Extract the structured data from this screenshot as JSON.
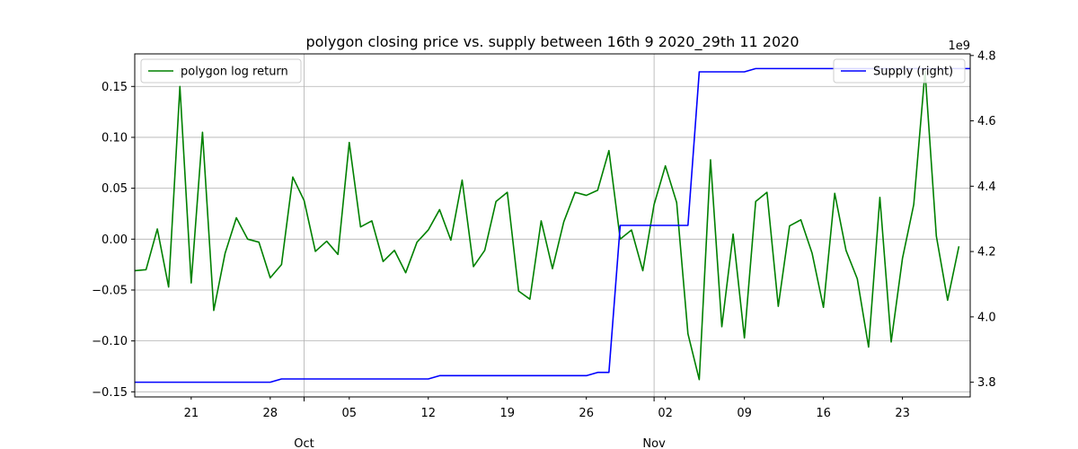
{
  "chart_data": {
    "type": "line",
    "title": "polygon closing price vs. supply between 16th 9 2020_29th 11 2020",
    "x_start": "2020-09-16",
    "x_end": "2020-11-29",
    "x_minor_ticks": [
      "21",
      "28",
      "05",
      "12",
      "19",
      "26",
      "02",
      "09",
      "16",
      "23"
    ],
    "x_minor_tick_dates": [
      "2020-09-21",
      "2020-09-28",
      "2020-10-05",
      "2020-10-12",
      "2020-10-19",
      "2020-10-26",
      "2020-11-02",
      "2020-11-09",
      "2020-11-16",
      "2020-11-23"
    ],
    "x_major_ticks": [
      "Oct",
      "Nov"
    ],
    "x_major_tick_dates": [
      "2020-10-01",
      "2020-11-01"
    ],
    "grid": true,
    "left_axis": {
      "ylim": [
        -0.155,
        0.182
      ],
      "ticks": [
        -0.15,
        -0.1,
        -0.05,
        0.0,
        0.05,
        0.1,
        0.15
      ],
      "tick_labels": [
        "−0.15",
        "−0.10",
        "−0.05",
        "0.00",
        "0.05",
        "0.10",
        "0.15"
      ]
    },
    "right_axis": {
      "ylim": [
        3.755,
        4.805
      ],
      "scale_label": "1e9",
      "ticks": [
        3.8,
        4.0,
        4.2,
        4.4,
        4.6,
        4.8
      ],
      "tick_labels": [
        "3.8",
        "4.0",
        "4.2",
        "4.4",
        "4.6",
        "4.8"
      ]
    },
    "series": [
      {
        "name": "polygon log return",
        "axis": "left",
        "color": "#008000",
        "legend_position": "upper left",
        "start_date": "2020-09-16",
        "values": [
          -0.031,
          -0.03,
          0.01,
          -0.047,
          0.15,
          -0.043,
          0.105,
          -0.07,
          -0.014,
          0.021,
          0.0,
          -0.003,
          -0.038,
          -0.025,
          0.061,
          0.038,
          -0.012,
          -0.002,
          -0.015,
          0.095,
          0.012,
          0.018,
          -0.022,
          -0.011,
          -0.033,
          -0.003,
          0.009,
          0.029,
          -0.001,
          0.058,
          -0.027,
          -0.011,
          0.037,
          0.046,
          -0.051,
          -0.059,
          0.018,
          -0.029,
          0.017,
          0.046,
          0.043,
          0.048,
          0.087,
          0.0,
          0.009,
          -0.031,
          0.034,
          0.072,
          0.036,
          -0.093,
          -0.138,
          0.078,
          -0.086,
          0.005,
          -0.097,
          0.037,
          0.046,
          -0.066,
          0.013,
          0.019,
          -0.014,
          -0.067,
          0.045,
          -0.011,
          -0.039,
          -0.106,
          0.041,
          -0.101,
          -0.019,
          0.034,
          0.165,
          0.003,
          -0.06,
          -0.007
        ]
      },
      {
        "name": "Supply (right)",
        "axis": "right",
        "color": "#0000ff",
        "legend_position": "upper right",
        "start_date": "2020-09-16",
        "values": [
          3.8,
          3.8,
          3.8,
          3.8,
          3.8,
          3.8,
          3.8,
          3.8,
          3.8,
          3.8,
          3.8,
          3.8,
          3.8,
          3.81,
          3.81,
          3.81,
          3.81,
          3.81,
          3.81,
          3.81,
          3.81,
          3.81,
          3.81,
          3.81,
          3.81,
          3.81,
          3.81,
          3.82,
          3.82,
          3.82,
          3.82,
          3.82,
          3.82,
          3.82,
          3.82,
          3.82,
          3.82,
          3.82,
          3.82,
          3.82,
          3.82,
          3.83,
          3.83,
          4.28,
          4.28,
          4.28,
          4.28,
          4.28,
          4.28,
          4.28,
          4.75,
          4.75,
          4.75,
          4.75,
          4.75,
          4.76,
          4.76,
          4.76,
          4.76,
          4.76,
          4.76,
          4.76,
          4.76,
          4.76,
          4.76,
          4.76,
          4.76,
          4.76,
          4.76,
          4.76,
          4.76,
          4.76,
          4.76,
          4.76,
          4.76
        ]
      }
    ]
  }
}
